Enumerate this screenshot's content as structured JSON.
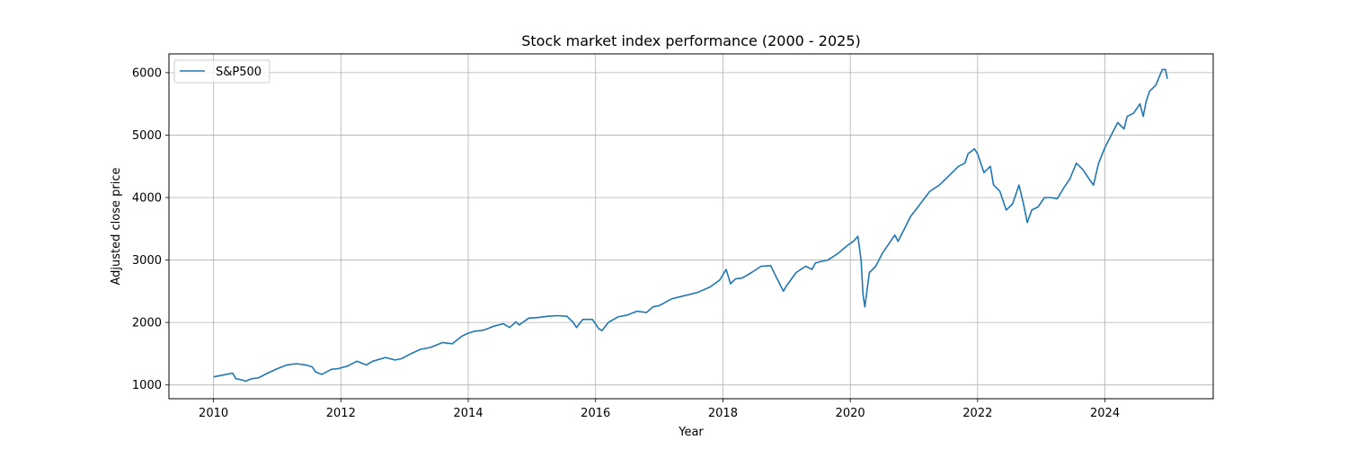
{
  "chart_data": {
    "type": "line",
    "title": "Stock market index performance (2000 - 2025)",
    "xlabel": "Year",
    "ylabel": "Adjusted close price",
    "xlim": [
      2009.3,
      2025.7
    ],
    "ylim": [
      780,
      6300
    ],
    "x_ticks": [
      2010,
      2012,
      2014,
      2016,
      2018,
      2020,
      2022,
      2024
    ],
    "y_ticks": [
      1000,
      2000,
      3000,
      4000,
      5000,
      6000
    ],
    "grid": true,
    "legend_position": "upper-left",
    "series": [
      {
        "name": "S&P500",
        "color": "#1f77b4",
        "x": [
          2010.0,
          2010.1,
          2010.3,
          2010.35,
          2010.45,
          2010.5,
          2010.6,
          2010.7,
          2010.85,
          2011.0,
          2011.15,
          2011.3,
          2011.45,
          2011.55,
          2011.6,
          2011.7,
          2011.85,
          2011.95,
          2012.1,
          2012.25,
          2012.4,
          2012.5,
          2012.7,
          2012.85,
          2012.95,
          2013.1,
          2013.25,
          2013.4,
          2013.5,
          2013.6,
          2013.75,
          2013.9,
          2014.0,
          2014.1,
          2014.25,
          2014.4,
          2014.55,
          2014.65,
          2014.75,
          2014.8,
          2014.95,
          2015.1,
          2015.25,
          2015.4,
          2015.55,
          2015.65,
          2015.7,
          2015.8,
          2015.95,
          2016.05,
          2016.1,
          2016.2,
          2016.35,
          2016.5,
          2016.65,
          2016.8,
          2016.9,
          2017.0,
          2017.2,
          2017.4,
          2017.6,
          2017.8,
          2017.95,
          2018.05,
          2018.12,
          2018.2,
          2018.3,
          2018.45,
          2018.6,
          2018.75,
          2018.85,
          2018.95,
          2019.0,
          2019.15,
          2019.3,
          2019.4,
          2019.45,
          2019.55,
          2019.65,
          2019.8,
          2019.95,
          2020.05,
          2020.12,
          2020.17,
          2020.2,
          2020.23,
          2020.3,
          2020.4,
          2020.5,
          2020.6,
          2020.7,
          2020.75,
          2020.85,
          2020.95,
          2021.1,
          2021.25,
          2021.4,
          2021.55,
          2021.7,
          2021.8,
          2021.85,
          2021.95,
          2022.0,
          2022.1,
          2022.2,
          2022.25,
          2022.35,
          2022.45,
          2022.55,
          2022.65,
          2022.72,
          2022.78,
          2022.85,
          2022.95,
          2023.05,
          2023.15,
          2023.25,
          2023.35,
          2023.45,
          2023.55,
          2023.65,
          2023.75,
          2023.82,
          2023.9,
          2024.0,
          2024.1,
          2024.2,
          2024.3,
          2024.35,
          2024.45,
          2024.55,
          2024.6,
          2024.65,
          2024.7,
          2024.8,
          2024.9,
          2024.95,
          2024.98
        ],
        "y": [
          1130,
          1150,
          1190,
          1100,
          1080,
          1060,
          1100,
          1110,
          1190,
          1260,
          1320,
          1340,
          1320,
          1290,
          1210,
          1170,
          1250,
          1260,
          1300,
          1380,
          1320,
          1380,
          1440,
          1400,
          1420,
          1500,
          1570,
          1600,
          1640,
          1680,
          1660,
          1780,
          1830,
          1860,
          1880,
          1940,
          1980,
          1920,
          2010,
          1960,
          2070,
          2080,
          2100,
          2110,
          2100,
          2000,
          1920,
          2050,
          2050,
          1900,
          1870,
          2000,
          2090,
          2120,
          2180,
          2160,
          2250,
          2270,
          2380,
          2430,
          2480,
          2570,
          2680,
          2850,
          2620,
          2700,
          2710,
          2800,
          2900,
          2910,
          2700,
          2500,
          2590,
          2800,
          2900,
          2850,
          2950,
          2980,
          3000,
          3100,
          3230,
          3300,
          3380,
          3000,
          2450,
          2250,
          2800,
          2900,
          3100,
          3250,
          3400,
          3300,
          3500,
          3700,
          3900,
          4100,
          4200,
          4350,
          4500,
          4550,
          4700,
          4780,
          4700,
          4400,
          4500,
          4200,
          4100,
          3800,
          3900,
          4200,
          3900,
          3600,
          3800,
          3850,
          4000,
          4000,
          3980,
          4150,
          4300,
          4550,
          4450,
          4300,
          4200,
          4550,
          4800,
          5000,
          5200,
          5100,
          5300,
          5350,
          5500,
          5300,
          5550,
          5700,
          5800,
          6050,
          6050,
          5900
        ]
      }
    ]
  }
}
